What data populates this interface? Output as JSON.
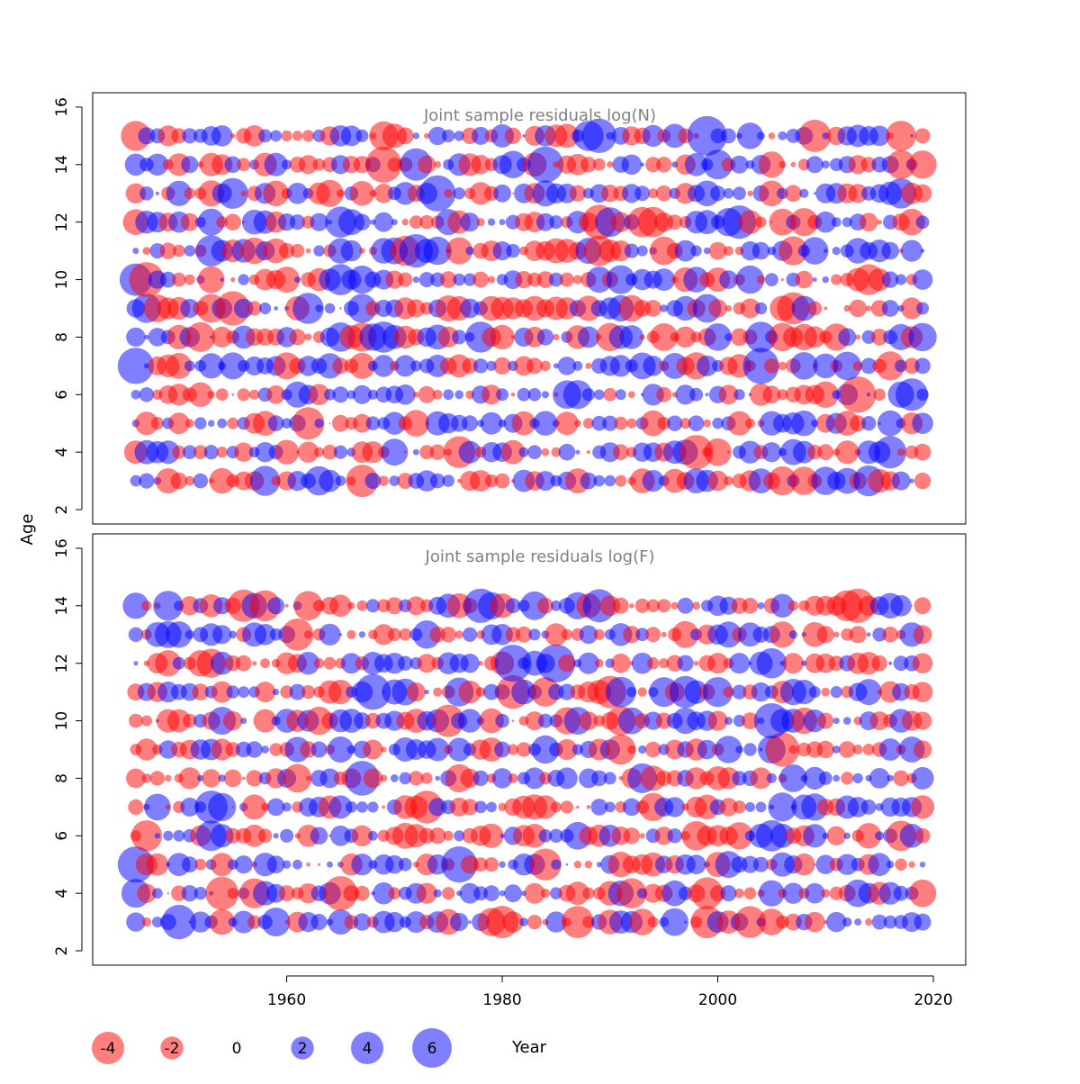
{
  "figure": {
    "ylabel": "Age",
    "xlabel": "Year",
    "x_ticks": [
      1960,
      1980,
      2000,
      2020
    ],
    "y_ticks": [
      2,
      4,
      6,
      8,
      10,
      12,
      14,
      16
    ],
    "colors": {
      "positive": "#0000ff",
      "negative": "#ff0000",
      "axis": "#000000",
      "panel_title": "#808080"
    },
    "legend": {
      "values": [
        -4,
        -2,
        0,
        2,
        4,
        6
      ],
      "labels": [
        "-4",
        "-2",
        "0",
        "2",
        "4",
        "6"
      ]
    }
  },
  "chart_data": [
    {
      "type": "scatter",
      "subtype": "bubble",
      "title": "Joint sample residuals log(N)",
      "xlabel": "Year",
      "ylabel": "Age",
      "xlim": [
        1942,
        2023
      ],
      "ylim": [
        1.5,
        16.5
      ],
      "ages": [
        3,
        4,
        5,
        6,
        7,
        8,
        9,
        10,
        11,
        12,
        13,
        14,
        15
      ],
      "year_range": [
        1946,
        2019
      ],
      "residual_range": [
        -6,
        6
      ],
      "encoding": "bubble area proportional to |residual|; blue = positive, red = negative",
      "seed": 17,
      "highlights": [
        {
          "year": 1969,
          "age": 14,
          "value": -5.0
        },
        {
          "year": 1974,
          "age": 13,
          "value": 5.0
        },
        {
          "year": 1984,
          "age": 14,
          "value": 5.0
        },
        {
          "year": 1999,
          "age": 15,
          "value": 6.0
        },
        {
          "year": 1946,
          "age": 10,
          "value": 4.0
        },
        {
          "year": 1946,
          "age": 7,
          "value": 5.0
        },
        {
          "year": 1955,
          "age": 9,
          "value": -4.5
        },
        {
          "year": 1962,
          "age": 5,
          "value": -4.0
        },
        {
          "year": 1998,
          "age": 4,
          "value": -4.5
        },
        {
          "year": 2004,
          "age": 7,
          "value": 5.0
        },
        {
          "year": 2018,
          "age": 6,
          "value": 4.0
        },
        {
          "year": 2016,
          "age": 4,
          "value": 4.0
        },
        {
          "year": 1967,
          "age": 3,
          "value": -4.0
        },
        {
          "year": 1969,
          "age": 14,
          "value": -5.0
        },
        {
          "year": 1989,
          "age": 15,
          "value": 4.5
        },
        {
          "year": 2009,
          "age": 15,
          "value": -4.0
        }
      ]
    },
    {
      "type": "scatter",
      "subtype": "bubble",
      "title": "Joint sample residuals log(F)",
      "xlabel": "Year",
      "ylabel": "Age",
      "xlim": [
        1942,
        2023
      ],
      "ylim": [
        1.5,
        16.5
      ],
      "ages": [
        3,
        4,
        5,
        6,
        7,
        8,
        9,
        10,
        11,
        12,
        13,
        14
      ],
      "year_range": [
        1946,
        2019
      ],
      "residual_range": [
        -6,
        6
      ],
      "encoding": "bubble area proportional to |residual|; blue = positive, red = negative",
      "seed": 91,
      "highlights": [
        {
          "year": 1985,
          "age": 12,
          "value": 5.5
        },
        {
          "year": 1946,
          "age": 5,
          "value": 5.0
        },
        {
          "year": 1976,
          "age": 5,
          "value": 5.0
        },
        {
          "year": 1978,
          "age": 14,
          "value": 4.5
        },
        {
          "year": 2013,
          "age": 14,
          "value": -4.5
        },
        {
          "year": 1956,
          "age": 14,
          "value": -4.0
        },
        {
          "year": 1950,
          "age": 3,
          "value": 4.5
        },
        {
          "year": 1999,
          "age": 3,
          "value": -4.0
        },
        {
          "year": 1980,
          "age": 3,
          "value": -4.0
        },
        {
          "year": 1965,
          "age": 4,
          "value": -4.5
        },
        {
          "year": 1975,
          "age": 10,
          "value": -4.0
        },
        {
          "year": 1990,
          "age": 11,
          "value": -4.0
        }
      ]
    }
  ]
}
